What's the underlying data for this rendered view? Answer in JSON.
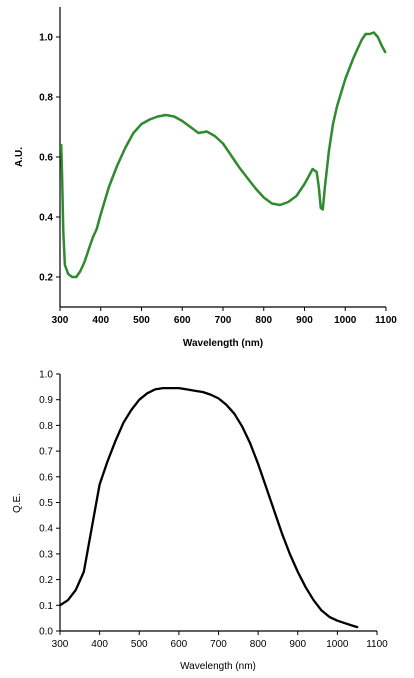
{
  "chart_data": [
    {
      "type": "line",
      "xlabel": "Wavelength (nm)",
      "ylabel": "A.U.",
      "xlim": [
        300,
        1100
      ],
      "ylim": [
        0.1,
        1.1
      ],
      "xticks": [
        300,
        400,
        500,
        600,
        700,
        800,
        900,
        1000,
        1100
      ],
      "xtick_labels": [
        "300",
        "400",
        "500",
        "600",
        "700",
        "800",
        "900",
        "1000",
        "1100"
      ],
      "yticks": [
        0.2,
        0.4,
        0.6,
        0.8,
        1.0
      ],
      "ytick_labels": [
        "0.2",
        "0.4",
        "0.6",
        "0.8",
        "1.0"
      ],
      "grid": false,
      "color": "#2e8b2e",
      "series": [
        {
          "x": [
            303,
            305,
            308,
            312,
            320,
            330,
            340,
            350,
            360,
            370,
            380,
            390,
            400,
            420,
            440,
            460,
            480,
            500,
            520,
            540,
            560,
            580,
            600,
            620,
            640,
            660,
            680,
            700,
            720,
            740,
            760,
            780,
            800,
            820,
            840,
            860,
            880,
            900,
            910,
            920,
            930,
            935,
            940,
            945,
            950,
            960,
            970,
            980,
            1000,
            1020,
            1040,
            1050,
            1060,
            1070,
            1080,
            1090,
            1098
          ],
          "y": [
            0.64,
            0.55,
            0.35,
            0.24,
            0.21,
            0.2,
            0.2,
            0.22,
            0.25,
            0.29,
            0.33,
            0.36,
            0.41,
            0.5,
            0.57,
            0.63,
            0.68,
            0.71,
            0.725,
            0.735,
            0.74,
            0.735,
            0.72,
            0.7,
            0.68,
            0.685,
            0.67,
            0.645,
            0.605,
            0.565,
            0.53,
            0.495,
            0.465,
            0.445,
            0.44,
            0.45,
            0.47,
            0.51,
            0.535,
            0.56,
            0.55,
            0.5,
            0.43,
            0.425,
            0.5,
            0.62,
            0.71,
            0.77,
            0.86,
            0.93,
            0.99,
            1.01,
            1.01,
            1.015,
            1.0,
            0.97,
            0.95
          ]
        }
      ]
    },
    {
      "type": "line",
      "xlabel": "Wavelength (nm)",
      "ylabel": "Q.E.",
      "xlim": [
        300,
        1100
      ],
      "ylim": [
        0.0,
        1.0
      ],
      "xticks": [
        300,
        400,
        500,
        600,
        700,
        800,
        900,
        1000,
        1100
      ],
      "xtick_labels": [
        "300",
        "400",
        "500",
        "600",
        "700",
        "800",
        "900",
        "1000",
        "1100"
      ],
      "yticks": [
        0.0,
        0.1,
        0.2,
        0.3,
        0.4,
        0.5,
        0.6,
        0.7,
        0.8,
        0.9,
        1.0
      ],
      "ytick_labels": [
        "0.0",
        "0.1",
        "0.2",
        "0.3",
        "0.4",
        "0.5",
        "0.6",
        "0.7",
        "0.8",
        "0.9",
        "1.0"
      ],
      "grid": false,
      "color": "#000000",
      "series": [
        {
          "x": [
            300,
            320,
            340,
            360,
            380,
            400,
            420,
            440,
            460,
            480,
            500,
            520,
            540,
            560,
            580,
            600,
            620,
            640,
            660,
            680,
            700,
            720,
            740,
            760,
            780,
            800,
            820,
            840,
            860,
            880,
            900,
            920,
            940,
            960,
            980,
            1000,
            1020,
            1040,
            1050
          ],
          "y": [
            0.1,
            0.12,
            0.16,
            0.23,
            0.4,
            0.57,
            0.66,
            0.74,
            0.81,
            0.86,
            0.9,
            0.925,
            0.94,
            0.945,
            0.945,
            0.945,
            0.94,
            0.935,
            0.93,
            0.92,
            0.905,
            0.88,
            0.845,
            0.795,
            0.73,
            0.65,
            0.56,
            0.47,
            0.38,
            0.3,
            0.23,
            0.17,
            0.12,
            0.08,
            0.055,
            0.04,
            0.03,
            0.02,
            0.015
          ]
        }
      ]
    }
  ]
}
